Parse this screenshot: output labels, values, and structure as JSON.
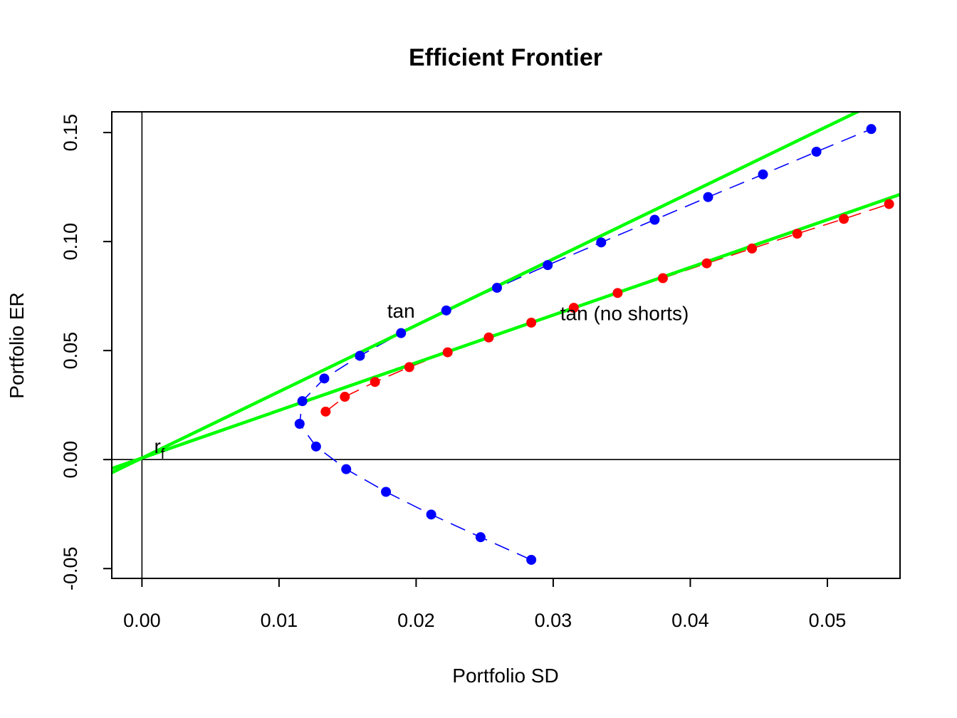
{
  "chart_data": {
    "type": "scatter",
    "title": "Efficient Frontier",
    "xlabel": "Portfolio SD",
    "ylabel": "Portfolio ER",
    "xlim": [
      -0.0022,
      0.0553
    ],
    "ylim": [
      -0.0545,
      0.1595
    ],
    "x_ticks": [
      0.0,
      0.01,
      0.02,
      0.03,
      0.04,
      0.05
    ],
    "x_tick_labels": [
      "0.00",
      "0.01",
      "0.02",
      "0.03",
      "0.04",
      "0.05"
    ],
    "y_ticks": [
      -0.05,
      0.0,
      0.05,
      0.1,
      0.15
    ],
    "y_tick_labels": [
      "-0.05",
      "0.00",
      "0.05",
      "0.10",
      "0.15"
    ],
    "grid": false,
    "reference_lines": {
      "x": 0.0,
      "y": 0.0,
      "color": "#000000"
    },
    "series": [
      {
        "color": "#0000ff",
        "line_style": "dashed",
        "x": [
          0.0284,
          0.0247,
          0.0211,
          0.0178,
          0.0149,
          0.0127,
          0.0115,
          0.0117,
          0.0133,
          0.0159,
          0.0189,
          0.0222,
          0.0259,
          0.0296,
          0.0335,
          0.0374,
          0.0413,
          0.0453,
          0.0492,
          0.0532
        ],
        "y": [
          -0.046,
          -0.0356,
          -0.0252,
          -0.0148,
          -0.0044,
          0.006,
          0.0164,
          0.0268,
          0.0372,
          0.0476,
          0.058,
          0.0684,
          0.0788,
          0.0892,
          0.0996,
          0.11,
          0.1204,
          0.1308,
          0.1412,
          0.1516
        ]
      },
      {
        "color": "#ff0000",
        "line_style": "dashed",
        "x": [
          0.0134,
          0.0148,
          0.017,
          0.0195,
          0.0223,
          0.0253,
          0.0284,
          0.0315,
          0.0347,
          0.038,
          0.0412,
          0.0445,
          0.0478,
          0.0512,
          0.0545
        ],
        "y": [
          0.022,
          0.0288,
          0.0356,
          0.0424,
          0.0492,
          0.056,
          0.0628,
          0.0696,
          0.0764,
          0.0832,
          0.09,
          0.0968,
          0.1036,
          0.1104,
          0.1172
        ]
      }
    ],
    "lines": [
      {
        "color": "#00ff00",
        "intercept": 0.0007,
        "slope": 3.043
      },
      {
        "color": "#00ff00",
        "intercept": 0.0007,
        "slope": 2.186
      }
    ],
    "annotations": [
      {
        "text": "tan",
        "x": 0.0189,
        "y": 0.065
      },
      {
        "text": "tan (no shorts)",
        "x": 0.0352,
        "y": 0.064
      },
      {
        "text": "r",
        "sub": "f",
        "x": 0.0012,
        "y": 0.003
      }
    ]
  }
}
